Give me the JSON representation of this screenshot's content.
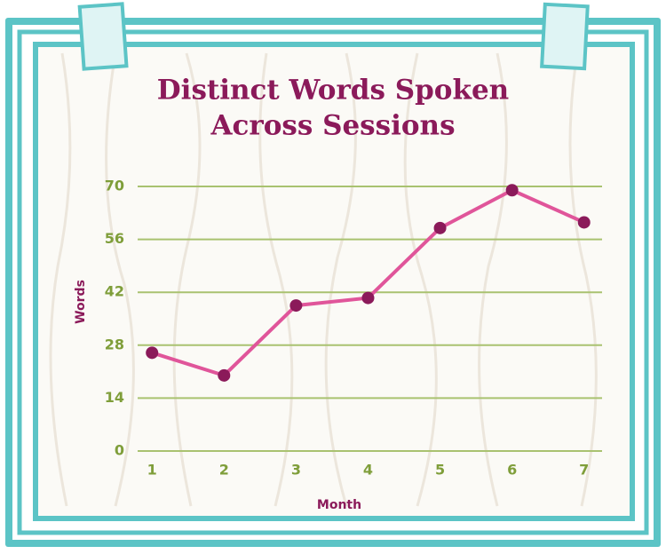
{
  "chart_data": {
    "type": "line",
    "title": [
      "Distinct Words Spoken",
      "Across Sessions"
    ],
    "x_label": "Month",
    "y_label": "Words",
    "x": [
      1,
      2,
      3,
      4,
      5,
      6,
      7
    ],
    "xlim": [
      0.8,
      7.25
    ],
    "xticks": [
      1,
      2,
      3,
      4,
      5,
      6,
      7
    ],
    "ylim": [
      0,
      70
    ],
    "yticks": [
      0,
      14,
      28,
      42,
      56,
      70
    ],
    "grid": true,
    "series": [
      {
        "name": "Words",
        "color": "#e0559a",
        "marker_color": "#8b1a5a",
        "values": [
          26,
          20,
          38.5,
          40.5,
          59,
          69,
          60.5
        ]
      }
    ]
  }
}
